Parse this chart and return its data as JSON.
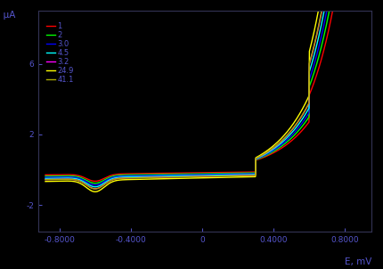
{
  "title": "",
  "xlabel": "E, mV",
  "ylabel": "I, μA",
  "background_color": "#000000",
  "text_color": "#5555cc",
  "xlim": [
    -0.92,
    0.95
  ],
  "ylim": [
    -3.5,
    9.0
  ],
  "xticks": [
    -0.8,
    -0.4,
    0.0,
    0.4,
    0.8
  ],
  "xtick_labels": [
    "-0.8000",
    "-0.4000",
    "0",
    "0.4000",
    "0.8000"
  ],
  "yticks": [
    6,
    2,
    -2
  ],
  "ytick_labels": [
    "6",
    "2",
    "-2"
  ],
  "legend_labels": [
    "1",
    "2",
    "3.0",
    "4.5",
    "3.2",
    "24.9",
    "41.1"
  ],
  "colors": [
    "#ff0000",
    "#00ff00",
    "#0000ff",
    "#00ffff",
    "#ff00ff",
    "#ffff00",
    "#aaaa00"
  ],
  "scales": [
    1.0,
    1.12,
    1.22,
    1.33,
    1.44,
    1.62,
    1.45
  ],
  "linewidth": 1.0
}
